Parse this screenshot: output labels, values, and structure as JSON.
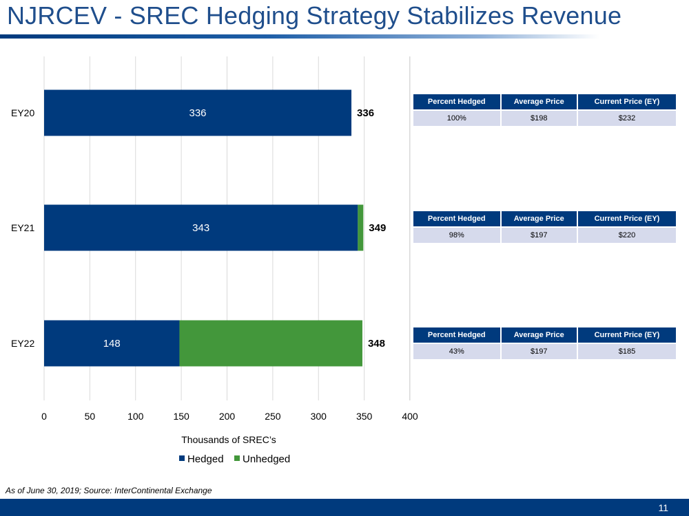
{
  "slide": {
    "title": "NJRCEV - SREC Hedging Strategy Stabilizes Revenue",
    "footnote": "As of June 30, 2019; Source: InterContinental Exchange",
    "page_number": "11"
  },
  "colors": {
    "hedged": "#003A7D",
    "unhedged": "#43973B",
    "title": "#1F4E8C",
    "table_header": "#003A7D",
    "table_cell": "#D6DAEC"
  },
  "chart_data": {
    "type": "bar",
    "orientation": "horizontal",
    "stacked": true,
    "categories": [
      "EY20",
      "EY21",
      "EY22"
    ],
    "series": [
      {
        "name": "Hedged",
        "values": [
          336,
          343,
          148
        ]
      },
      {
        "name": "Unhedged",
        "values": [
          0,
          6,
          200
        ]
      }
    ],
    "data_labels": [
      "336",
      "343",
      "148"
    ],
    "totals": [
      "336",
      "349",
      "348"
    ],
    "xlabel": "Thousands of SREC’s",
    "xlim": [
      0,
      400
    ],
    "xticks": [
      0,
      50,
      100,
      150,
      200,
      250,
      300,
      350,
      400
    ],
    "grid": true,
    "legend_position": "bottom"
  },
  "tables": [
    {
      "headers": [
        "Percent Hedged",
        "Average Price",
        "Current Price (EY)"
      ],
      "row": [
        "100%",
        "$198",
        "$232"
      ]
    },
    {
      "headers": [
        "Percent Hedged",
        "Average Price",
        "Current Price (EY)"
      ],
      "row": [
        "98%",
        "$197",
        "$220"
      ]
    },
    {
      "headers": [
        "Percent Hedged",
        "Average Price",
        "Current Price (EY)"
      ],
      "row": [
        "43%",
        "$197",
        "$185"
      ]
    }
  ]
}
